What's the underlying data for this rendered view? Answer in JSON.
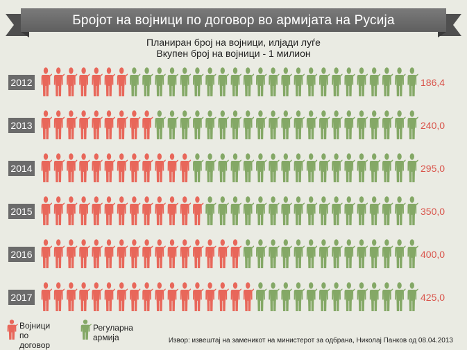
{
  "title": "Бројот на војници по договор во армијата на Русија",
  "subtitle_line1": "Планиран број на војници, илјади луѓе",
  "subtitle_line2": "Вкупен број на војници - 1 милион",
  "chart_data": {
    "type": "pictogram",
    "unit_per_icon": 25,
    "total_icons": 30,
    "categories": [
      "2012",
      "2013",
      "2014",
      "2015",
      "2016",
      "2017"
    ],
    "values": [
      186.4,
      240.0,
      295.0,
      350.0,
      400.0,
      425.0
    ],
    "value_labels": [
      "186,4",
      "240,0",
      "295,0",
      "350,0",
      "400,0",
      "425,0"
    ],
    "contract_icons": [
      7,
      9,
      12,
      13,
      16,
      17
    ],
    "total": 1000
  },
  "legend": {
    "contract": "Војници по договор",
    "regular": "Регуларна армија"
  },
  "colors": {
    "contract": "#e8675a",
    "regular": "#84a866",
    "value_text": "#d9534a",
    "year_box": "#6b6b6b",
    "banner": "#6e6e6e"
  },
  "source": "Извор: извештај на заменикот на министерот за одбрана, Николај Панков од 08.04.2013"
}
